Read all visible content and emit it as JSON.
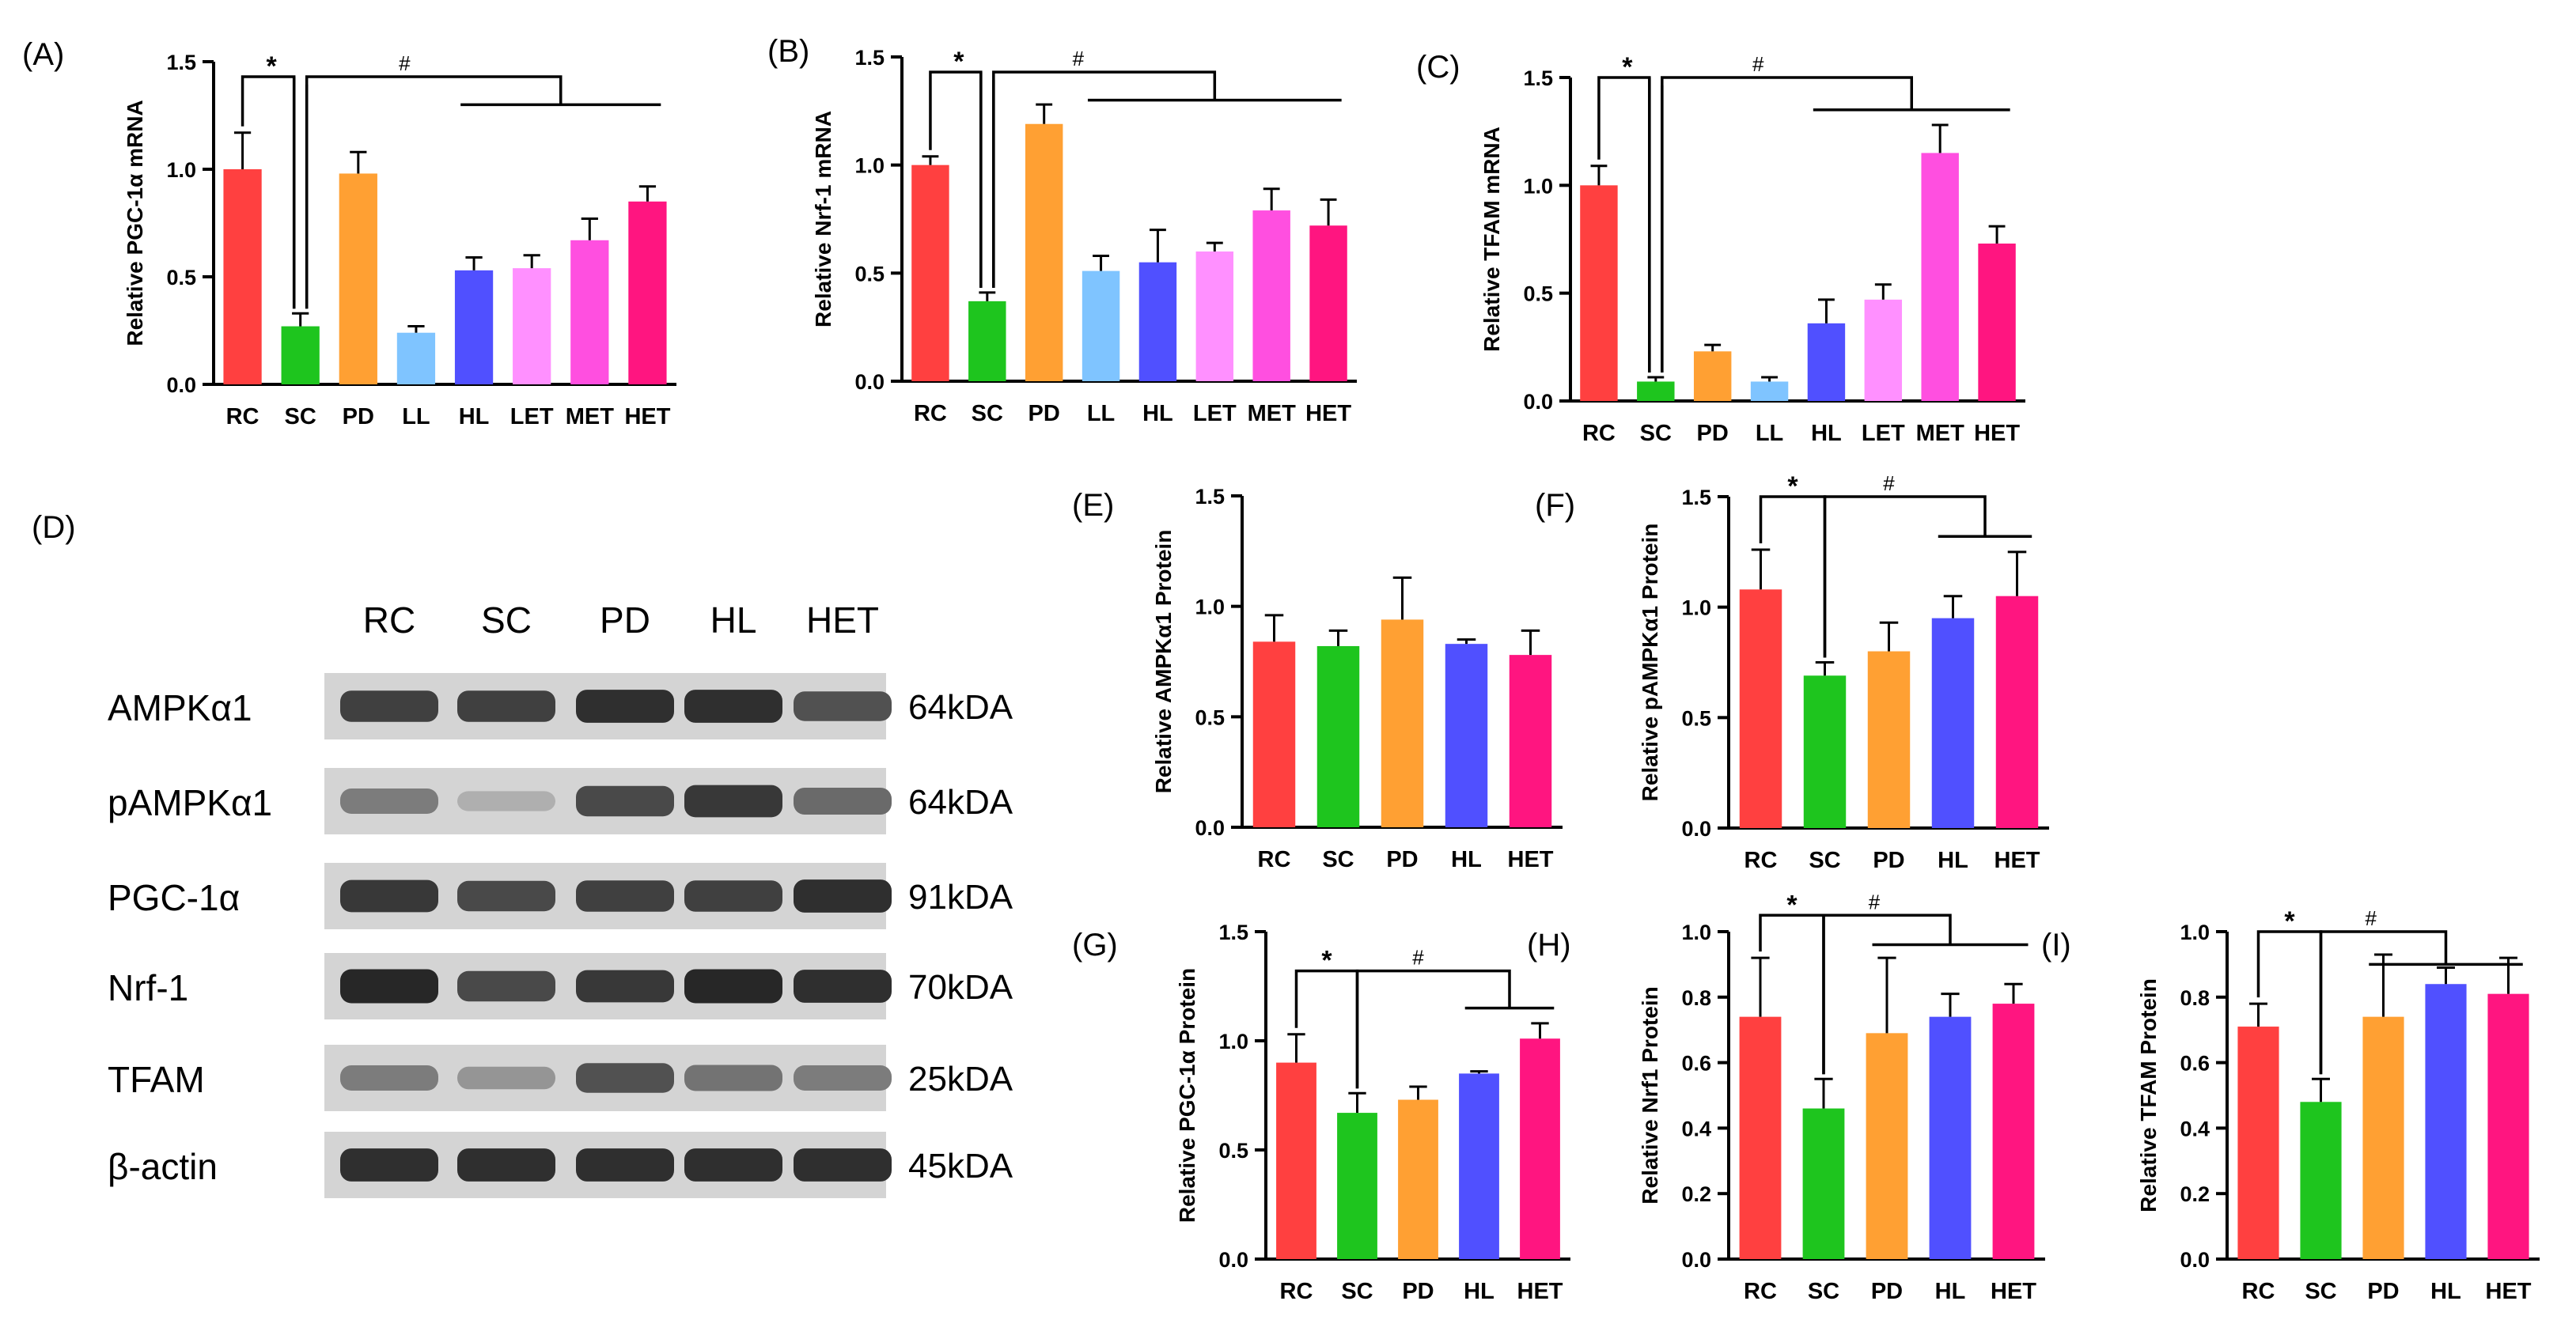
{
  "colors": {
    "RC": "#ff4040",
    "SC": "#1ec51e",
    "PD": "#ffa033",
    "LL": "#7fc4ff",
    "HL": "#5050ff",
    "LET": "#ff90ff",
    "MET": "#ff4fe0",
    "HET": "#ff1580"
  },
  "chart_data": [
    {
      "id": "A",
      "panel_label": "(A)",
      "type": "bar",
      "ylabel": "Relative PGC-1α mRNA",
      "ylim": [
        0,
        1.5
      ],
      "yticks": [
        "0.0",
        "0.5",
        "1.0",
        "1.5"
      ],
      "categories": [
        "RC",
        "SC",
        "PD",
        "LL",
        "HL",
        "LET",
        "MET",
        "HET"
      ],
      "values": [
        1.0,
        0.27,
        0.98,
        0.24,
        0.53,
        0.54,
        0.67,
        0.85
      ],
      "errors": [
        0.17,
        0.06,
        0.1,
        0.03,
        0.06,
        0.06,
        0.1,
        0.07
      ],
      "sig": {
        "star": "*",
        "hash": "#",
        "hash_targets": [
          "HL",
          "LET",
          "MET",
          "HET"
        ],
        "group_line_y": 1.3,
        "top_y": 1.43,
        "outline": true
      }
    },
    {
      "id": "B",
      "panel_label": "(B)",
      "type": "bar",
      "ylabel": "Relative Nrf-1 mRNA",
      "ylim": [
        0,
        1.5
      ],
      "yticks": [
        "0.0",
        "0.5",
        "1.0",
        "1.5"
      ],
      "categories": [
        "RC",
        "SC",
        "PD",
        "LL",
        "HL",
        "LET",
        "MET",
        "HET"
      ],
      "values": [
        1.0,
        0.37,
        1.19,
        0.51,
        0.55,
        0.6,
        0.79,
        0.72
      ],
      "errors": [
        0.04,
        0.04,
        0.09,
        0.07,
        0.15,
        0.04,
        0.1,
        0.12
      ],
      "sig": {
        "star": "*",
        "hash": "#",
        "hash_targets": [
          "LL",
          "HL",
          "LET",
          "MET",
          "HET"
        ],
        "group_line_y": 1.3,
        "top_y": 1.43,
        "outline": true
      }
    },
    {
      "id": "C",
      "panel_label": "(C)",
      "type": "bar",
      "ylabel": "Relative TFAM mRNA",
      "ylim": [
        0,
        1.5
      ],
      "yticks": [
        "0.0",
        "0.5",
        "1.0",
        "1.5"
      ],
      "categories": [
        "RC",
        "SC",
        "PD",
        "LL",
        "HL",
        "LET",
        "MET",
        "HET"
      ],
      "values": [
        1.0,
        0.09,
        0.23,
        0.09,
        0.36,
        0.47,
        1.15,
        0.73
      ],
      "errors": [
        0.09,
        0.02,
        0.03,
        0.02,
        0.11,
        0.07,
        0.13,
        0.08
      ],
      "sig": {
        "star": "*",
        "hash": "#",
        "hash_targets": [
          "HL",
          "LET",
          "MET",
          "HET"
        ],
        "group_line_y": 1.35,
        "top_y": 1.5,
        "outline": true
      }
    },
    {
      "id": "E",
      "panel_label": "(E)",
      "type": "bar",
      "ylabel": "Relative AMPKα1 Protein",
      "ylim": [
        0,
        1.5
      ],
      "yticks": [
        "0.0",
        "0.5",
        "1.0",
        "1.5"
      ],
      "categories": [
        "RC",
        "SC",
        "PD",
        "HL",
        "HET"
      ],
      "values": [
        0.84,
        0.82,
        0.94,
        0.83,
        0.78
      ],
      "errors": [
        0.12,
        0.07,
        0.19,
        0.02,
        0.11
      ],
      "sig": null
    },
    {
      "id": "F",
      "panel_label": "(F)",
      "type": "bar",
      "ylabel": "Relative pAMPKα1 Protein",
      "ylim": [
        0,
        1.5
      ],
      "yticks": [
        "0.0",
        "0.5",
        "1.0",
        "1.5"
      ],
      "categories": [
        "RC",
        "SC",
        "PD",
        "HL",
        "HET"
      ],
      "values": [
        1.08,
        0.69,
        0.8,
        0.95,
        1.05
      ],
      "errors": [
        0.18,
        0.06,
        0.13,
        0.1,
        0.2
      ],
      "sig": {
        "star": "*",
        "hash": "#",
        "hash_targets": [
          "HL",
          "HET"
        ],
        "group_line_y": 1.32,
        "top_y": 1.5,
        "outline": false
      }
    },
    {
      "id": "G",
      "panel_label": "(G)",
      "type": "bar",
      "ylabel": "Relative PGC-1α Protein",
      "ylim": [
        0,
        1.5
      ],
      "yticks": [
        "0.0",
        "0.5",
        "1.0",
        "1.5"
      ],
      "categories": [
        "RC",
        "SC",
        "PD",
        "HL",
        "HET"
      ],
      "values": [
        0.9,
        0.67,
        0.73,
        0.85,
        1.01
      ],
      "errors": [
        0.13,
        0.09,
        0.06,
        0.01,
        0.07
      ],
      "sig": {
        "star": "*",
        "hash": "#",
        "hash_targets": [
          "HL",
          "HET"
        ],
        "group_line_y": 1.15,
        "top_y": 1.32,
        "outline": false
      }
    },
    {
      "id": "H",
      "panel_label": "(H)",
      "type": "bar",
      "ylabel": "Relative Nrf1 Protein",
      "ylim": [
        0,
        1.0
      ],
      "yticks": [
        "0.0",
        "0.2",
        "0.4",
        "0.6",
        "0.8",
        "1.0"
      ],
      "categories": [
        "RC",
        "SC",
        "PD",
        "HL",
        "HET"
      ],
      "values": [
        0.74,
        0.46,
        0.69,
        0.74,
        0.78
      ],
      "errors": [
        0.18,
        0.09,
        0.23,
        0.07,
        0.06
      ],
      "sig": {
        "star": "*",
        "hash": "#",
        "hash_targets": [
          "PD",
          "HL",
          "HET"
        ],
        "group_line_y": 0.96,
        "top_y": 1.05,
        "outline": false
      }
    },
    {
      "id": "I",
      "panel_label": "(I)",
      "type": "bar",
      "ylabel": "Relative TFAM Protein",
      "ylim": [
        0,
        1.0
      ],
      "yticks": [
        "0.0",
        "0.2",
        "0.4",
        "0.6",
        "0.8",
        "1.0"
      ],
      "categories": [
        "RC",
        "SC",
        "PD",
        "HL",
        "HET"
      ],
      "values": [
        0.71,
        0.48,
        0.74,
        0.84,
        0.81
      ],
      "errors": [
        0.07,
        0.07,
        0.19,
        0.05,
        0.11
      ],
      "sig": {
        "star": "*",
        "hash": "#",
        "hash_targets": [
          "PD",
          "HL",
          "HET"
        ],
        "group_line_y": 0.9,
        "top_y": 1.0,
        "outline": false
      }
    }
  ],
  "western_blot": {
    "panel_label": "(D)",
    "lanes": [
      "RC",
      "SC",
      "PD",
      "HL",
      "HET"
    ],
    "rows": [
      {
        "protein": "AMPKα1",
        "size": "64kDA",
        "intensities": [
          0.8,
          0.8,
          0.9,
          0.9,
          0.7
        ]
      },
      {
        "protein": "pAMPKα1",
        "size": "64kDA",
        "intensities": [
          0.45,
          0.15,
          0.75,
          0.85,
          0.55
        ]
      },
      {
        "protein": "PGC-1α",
        "size": "91kDA",
        "intensities": [
          0.85,
          0.75,
          0.8,
          0.8,
          0.9
        ]
      },
      {
        "protein": "Nrf-1",
        "size": "70kDA",
        "intensities": [
          0.95,
          0.75,
          0.85,
          0.95,
          0.9
        ]
      },
      {
        "protein": "TFAM",
        "size": "25kDA",
        "intensities": [
          0.45,
          0.3,
          0.7,
          0.5,
          0.45
        ]
      },
      {
        "protein": "β-actin",
        "size": "45kDA",
        "intensities": [
          0.9,
          0.9,
          0.9,
          0.9,
          0.9
        ]
      }
    ]
  }
}
